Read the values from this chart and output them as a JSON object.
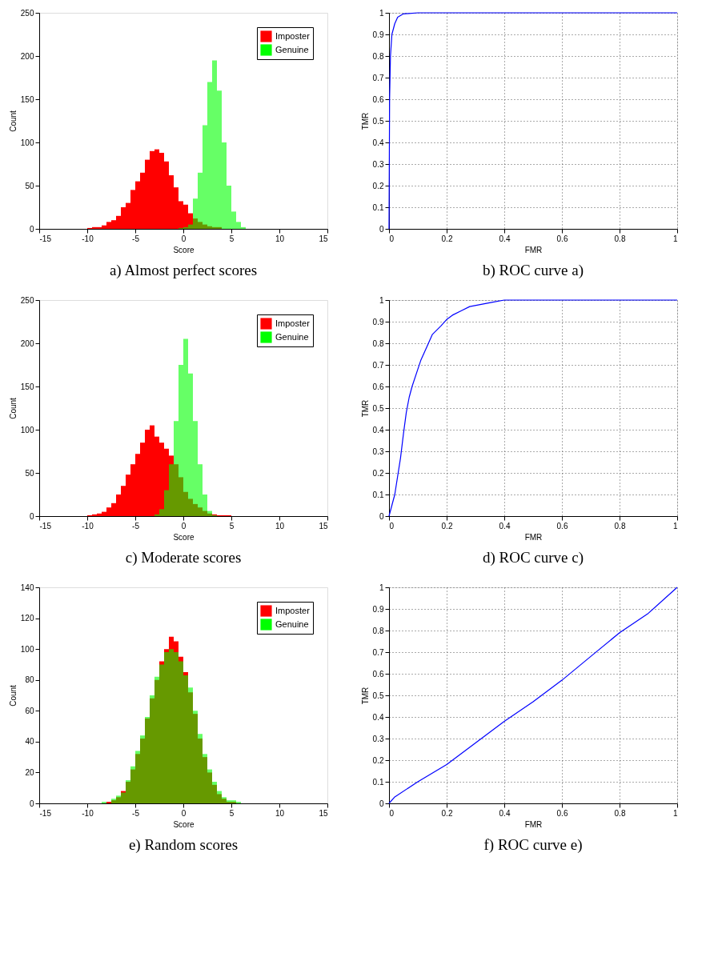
{
  "chart_data": [
    {
      "type": "histogram",
      "title": "a) Almost perfect scores",
      "xlabel": "Score",
      "ylabel": "Count",
      "legend": "top right",
      "xlim": [
        -15,
        15
      ],
      "xticks": [
        -15,
        -10,
        -5,
        0,
        5,
        10,
        15
      ],
      "ylim": [
        0,
        250
      ],
      "yticks": [
        0,
        50,
        100,
        150,
        200,
        250
      ],
      "bins": [
        -10,
        -9.5,
        -9,
        -8.5,
        -8,
        -7.5,
        -7,
        -6.5,
        -6,
        -5.5,
        -5,
        -4.5,
        -4,
        -3.5,
        -3,
        -2.5,
        -2,
        -1.5,
        -1,
        -0.5,
        0,
        0.5,
        1,
        1.5,
        2,
        2.5,
        3,
        3.5,
        4,
        4.5,
        5,
        5.5,
        6,
        6.5,
        7
      ],
      "series": [
        {
          "name": "Imposter",
          "color": "#ff0000",
          "values": [
            1,
            2,
            2,
            4,
            8,
            10,
            15,
            25,
            30,
            45,
            55,
            65,
            80,
            90,
            92,
            88,
            78,
            62,
            48,
            32,
            28,
            18,
            12,
            8,
            5,
            3,
            2,
            2,
            0,
            0,
            0,
            0,
            0,
            0
          ]
        },
        {
          "name": "Genuine",
          "color": "#00ff00",
          "values": [
            0,
            0,
            0,
            0,
            0,
            0,
            0,
            0,
            0,
            0,
            0,
            0,
            0,
            0,
            0,
            0,
            0,
            0,
            0,
            1,
            2,
            5,
            35,
            65,
            120,
            170,
            195,
            160,
            100,
            50,
            20,
            8,
            2,
            0
          ]
        }
      ]
    },
    {
      "type": "line",
      "title": "b) ROC curve a)",
      "xlabel": "FMR",
      "ylabel": "TMR",
      "grid": true,
      "xlim": [
        0,
        1
      ],
      "xticks": [
        0,
        0.2,
        0.4,
        0.6,
        0.8,
        1
      ],
      "ylim": [
        0,
        1
      ],
      "yticks": [
        0,
        0.1,
        0.2,
        0.3,
        0.4,
        0.5,
        0.6,
        0.7,
        0.8,
        0.9,
        1
      ],
      "series": [
        {
          "color": "#0000ff",
          "x": [
            0,
            0.002,
            0.005,
            0.01,
            0.02,
            0.03,
            0.05,
            0.1,
            1
          ],
          "values": [
            0,
            0.6,
            0.8,
            0.9,
            0.95,
            0.98,
            0.995,
            1,
            1
          ]
        }
      ]
    },
    {
      "type": "histogram",
      "title": "c) Moderate scores",
      "xlabel": "Score",
      "ylabel": "Count",
      "legend": "top right",
      "xlim": [
        -15,
        15
      ],
      "xticks": [
        -15,
        -10,
        -5,
        0,
        5,
        10,
        15
      ],
      "ylim": [
        0,
        250
      ],
      "yticks": [
        0,
        50,
        100,
        150,
        200,
        250
      ],
      "bins": [
        -10,
        -9.5,
        -9,
        -8.5,
        -8,
        -7.5,
        -7,
        -6.5,
        -6,
        -5.5,
        -5,
        -4.5,
        -4,
        -3.5,
        -3,
        -2.5,
        -2,
        -1.5,
        -1,
        -0.5,
        0,
        0.5,
        1,
        1.5,
        2,
        2.5,
        3,
        3.5,
        4,
        4.5,
        5,
        5.5,
        6,
        6.5,
        7
      ],
      "series": [
        {
          "name": "Imposter",
          "color": "#ff0000",
          "values": [
            1,
            2,
            3,
            5,
            10,
            15,
            25,
            35,
            48,
            60,
            72,
            85,
            100,
            105,
            92,
            85,
            78,
            70,
            60,
            45,
            28,
            20,
            14,
            10,
            6,
            3,
            2,
            1,
            1,
            1,
            0,
            0,
            0,
            0
          ]
        },
        {
          "name": "Genuine",
          "color": "#00ff00",
          "values": [
            0,
            0,
            0,
            0,
            0,
            0,
            0,
            0,
            0,
            0,
            0,
            0,
            0,
            0,
            2,
            8,
            30,
            60,
            110,
            175,
            205,
            165,
            110,
            60,
            25,
            6,
            1,
            0,
            0,
            0,
            0,
            0,
            0,
            0
          ]
        }
      ]
    },
    {
      "type": "line",
      "title": "d) ROC curve c)",
      "xlabel": "FMR",
      "ylabel": "TMR",
      "grid": true,
      "xlim": [
        0,
        1
      ],
      "xticks": [
        0,
        0.2,
        0.4,
        0.6,
        0.8,
        1
      ],
      "ylim": [
        0,
        1
      ],
      "yticks": [
        0,
        0.1,
        0.2,
        0.3,
        0.4,
        0.5,
        0.6,
        0.7,
        0.8,
        0.9,
        1
      ],
      "series": [
        {
          "color": "#0000ff",
          "x": [
            0,
            0.02,
            0.04,
            0.05,
            0.06,
            0.07,
            0.08,
            0.1,
            0.11,
            0.13,
            0.15,
            0.18,
            0.2,
            0.22,
            0.25,
            0.28,
            0.32,
            0.36,
            0.4,
            1
          ],
          "values": [
            0,
            0.1,
            0.27,
            0.38,
            0.48,
            0.55,
            0.6,
            0.68,
            0.72,
            0.78,
            0.84,
            0.88,
            0.91,
            0.93,
            0.95,
            0.97,
            0.98,
            0.99,
            1,
            1
          ]
        }
      ]
    },
    {
      "type": "histogram",
      "title": "e) Random scores",
      "xlabel": "Score",
      "ylabel": "Count",
      "legend": "top right",
      "xlim": [
        -15,
        15
      ],
      "xticks": [
        -15,
        -10,
        -5,
        0,
        5,
        10,
        15
      ],
      "ylim": [
        0,
        140
      ],
      "yticks": [
        0,
        20,
        40,
        60,
        80,
        100,
        120,
        140
      ],
      "bins": [
        -10,
        -9.5,
        -9,
        -8.5,
        -8,
        -7.5,
        -7,
        -6.5,
        -6,
        -5.5,
        -5,
        -4.5,
        -4,
        -3.5,
        -3,
        -2.5,
        -2,
        -1.5,
        -1,
        -0.5,
        0,
        0.5,
        1,
        1.5,
        2,
        2.5,
        3,
        3.5,
        4,
        4.5,
        5,
        5.5,
        6,
        6.5,
        7
      ],
      "series": [
        {
          "name": "Imposter",
          "color": "#ff0000",
          "values": [
            0,
            0,
            0,
            0,
            1,
            2,
            4,
            8,
            14,
            22,
            32,
            42,
            55,
            68,
            80,
            92,
            100,
            108,
            105,
            95,
            85,
            72,
            58,
            42,
            30,
            20,
            12,
            6,
            3,
            1,
            1,
            0,
            0,
            0
          ]
        },
        {
          "name": "Genuine",
          "color": "#00ff00",
          "values": [
            0,
            0,
            0,
            1,
            0,
            3,
            5,
            7,
            15,
            24,
            34,
            44,
            56,
            70,
            82,
            90,
            98,
            100,
            98,
            92,
            83,
            75,
            60,
            45,
            32,
            22,
            14,
            8,
            4,
            2,
            2,
            1,
            0,
            0
          ]
        }
      ]
    },
    {
      "type": "line",
      "title": "f) ROC curve e)",
      "xlabel": "FMR",
      "ylabel": "TMR",
      "grid": true,
      "xlim": [
        0,
        1
      ],
      "xticks": [
        0,
        0.2,
        0.4,
        0.6,
        0.8,
        1
      ],
      "ylim": [
        0,
        1
      ],
      "yticks": [
        0,
        0.1,
        0.2,
        0.3,
        0.4,
        0.5,
        0.6,
        0.7,
        0.8,
        0.9,
        1
      ],
      "series": [
        {
          "color": "#0000ff",
          "x": [
            0,
            0.02,
            0.1,
            0.2,
            0.3,
            0.4,
            0.5,
            0.6,
            0.7,
            0.8,
            0.9,
            1
          ],
          "values": [
            0,
            0.03,
            0.1,
            0.18,
            0.28,
            0.38,
            0.47,
            0.57,
            0.68,
            0.79,
            0.88,
            1
          ]
        }
      ]
    }
  ]
}
